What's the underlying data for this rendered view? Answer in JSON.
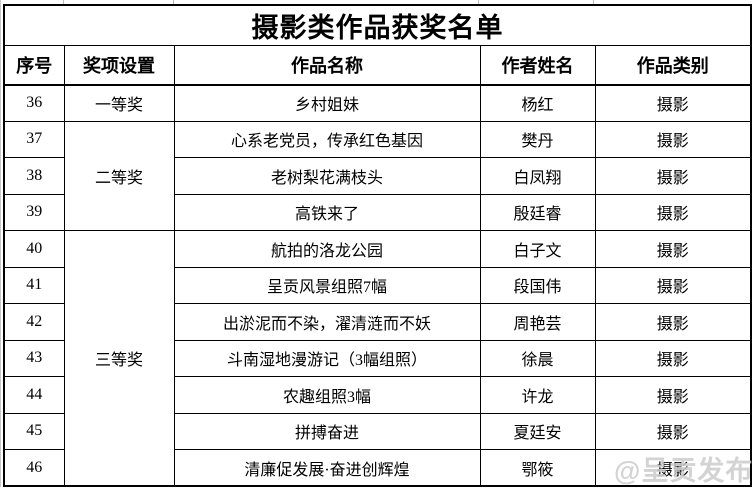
{
  "table": {
    "title": "摄影类作品获奖名单",
    "headers": [
      "序号",
      "奖项设置",
      "作品名称",
      "作者姓名",
      "作品类别"
    ],
    "rows": [
      {
        "no": "36",
        "award": "一等奖",
        "award_rowspan": 1,
        "title": "乡村姐妹",
        "author": "杨红",
        "category": "摄影"
      },
      {
        "no": "37",
        "award": "二等奖",
        "award_rowspan": 3,
        "title": "心系老党员，传承红色基因",
        "author": "樊丹",
        "category": "摄影"
      },
      {
        "no": "38",
        "title": "老树梨花满枝头",
        "author": "白凤翔",
        "category": "摄影"
      },
      {
        "no": "39",
        "title": "高铁来了",
        "author": "殷廷睿",
        "category": "摄影"
      },
      {
        "no": "40",
        "award": "三等奖",
        "award_rowspan": 7,
        "title": "航拍的洛龙公园",
        "author": "白子文",
        "category": "摄影"
      },
      {
        "no": "41",
        "title": "呈贡风景组照7幅",
        "author": "段国伟",
        "category": "摄影"
      },
      {
        "no": "42",
        "title": "出淤泥而不染，濯清涟而不妖",
        "author": "周艳芸",
        "category": "摄影"
      },
      {
        "no": "43",
        "title": "斗南湿地漫游记（3幅组照）",
        "author": "徐晨",
        "category": "摄影"
      },
      {
        "no": "44",
        "title": "农趣组照3幅",
        "author": "许龙",
        "category": "摄影"
      },
      {
        "no": "45",
        "title": "拼搏奋进",
        "author": "夏廷安",
        "category": "摄影"
      },
      {
        "no": "46",
        "title": "清廉促发展·奋进创辉煌",
        "author": "鄂筱",
        "category": "摄影"
      }
    ]
  },
  "watermark": {
    "text": "@呈贡发布",
    "color": "#cccccc"
  },
  "colors": {
    "border": "#000000",
    "text": "#000000",
    "background": "#ffffff",
    "grid_stub": "#b9b9b9"
  }
}
